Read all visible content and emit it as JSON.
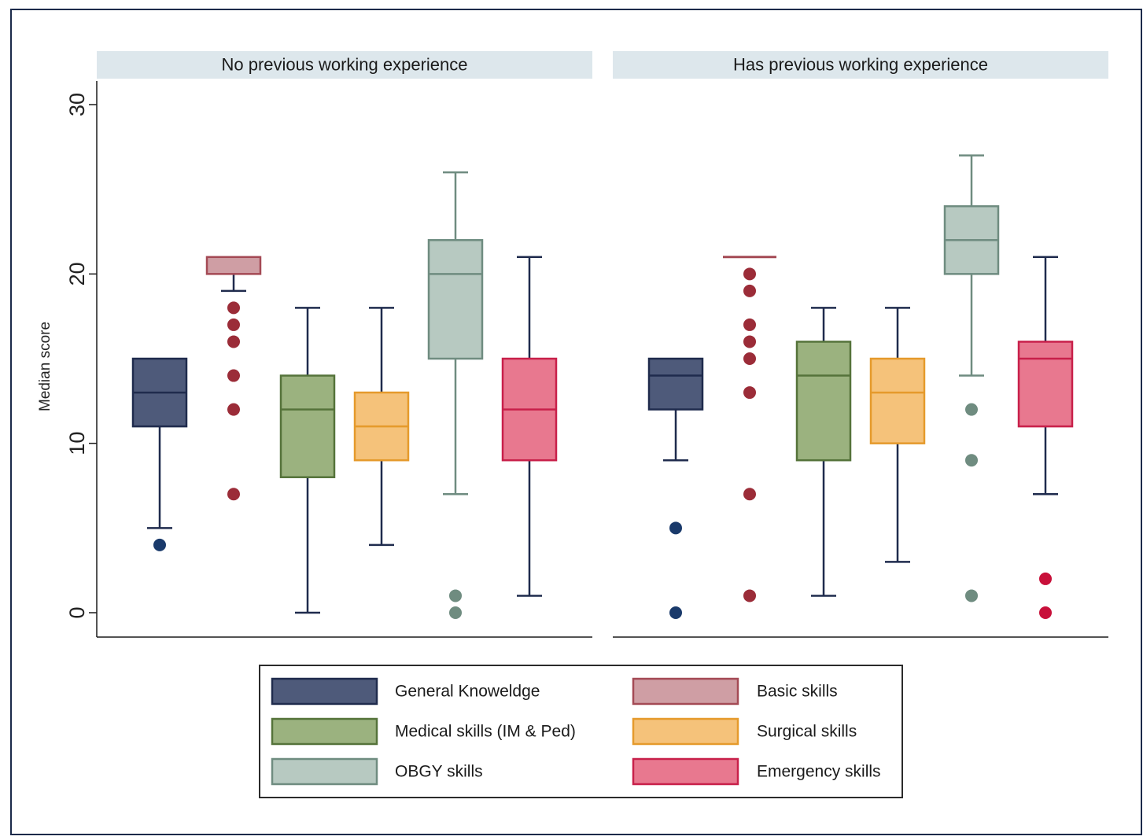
{
  "chart_data": {
    "type": "boxplot",
    "ylabel": "Median score",
    "ylim": [
      0,
      30
    ],
    "yticks": [
      0,
      10,
      20,
      30
    ],
    "panels": [
      {
        "title": "No previous working experience",
        "boxes": [
          {
            "category": "General Knowledge",
            "whisker_low": 5,
            "q1": 11,
            "median": 13,
            "q3": 15,
            "whisker_high": 15,
            "outliers": [
              4
            ]
          },
          {
            "category": "Basic skills",
            "whisker_low": 19,
            "q1": 20,
            "median": 21,
            "q3": 21,
            "whisker_high": 21,
            "outliers": [
              18,
              17,
              16,
              14,
              12,
              7
            ]
          },
          {
            "category": "Medical skills (IM & Ped)",
            "whisker_low": 0,
            "q1": 8,
            "median": 12,
            "q3": 14,
            "whisker_high": 18,
            "outliers": []
          },
          {
            "category": "Surgical skills",
            "whisker_low": 4,
            "q1": 9,
            "median": 11,
            "q3": 13,
            "whisker_high": 18,
            "outliers": []
          },
          {
            "category": "OBGY skills",
            "whisker_low": 7,
            "q1": 15,
            "median": 20,
            "q3": 22,
            "whisker_high": 26,
            "outliers": [
              1,
              0
            ]
          },
          {
            "category": "Emergency skills",
            "whisker_low": 1,
            "q1": 9,
            "median": 12,
            "q3": 15,
            "whisker_high": 21,
            "outliers": []
          }
        ]
      },
      {
        "title": "Has previous working experience",
        "boxes": [
          {
            "category": "General Knowledge",
            "whisker_low": 9,
            "q1": 12,
            "median": 14,
            "q3": 15,
            "whisker_high": 15,
            "outliers": [
              5,
              0
            ]
          },
          {
            "category": "Basic skills",
            "whisker_low": 21,
            "q1": 21,
            "median": 21,
            "q3": 21,
            "whisker_high": 21,
            "outliers": [
              20,
              19,
              17,
              16,
              15,
              13,
              7,
              1
            ]
          },
          {
            "category": "Medical skills (IM & Ped)",
            "whisker_low": 1,
            "q1": 9,
            "median": 14,
            "q3": 16,
            "whisker_high": 18,
            "outliers": []
          },
          {
            "category": "Surgical skills",
            "whisker_low": 3,
            "q1": 10,
            "median": 13,
            "q3": 15,
            "whisker_high": 18,
            "outliers": []
          },
          {
            "category": "OBGY skills",
            "whisker_low": 14,
            "q1": 20,
            "median": 22,
            "q3": 24,
            "whisker_high": 27,
            "outliers": [
              12,
              9,
              1
            ]
          },
          {
            "category": "Emergency skills",
            "whisker_low": 7,
            "q1": 11,
            "median": 15,
            "q3": 16,
            "whisker_high": 21,
            "outliers": [
              2,
              0
            ]
          }
        ]
      }
    ],
    "legend": {
      "placement": "bottom",
      "entries": [
        {
          "label": "General Knoweldge",
          "fill": "#4e5a7a",
          "stroke": "#1f2b4d"
        },
        {
          "label": "Basic skills",
          "fill": "#cf9ea4",
          "stroke": "#a44a55"
        },
        {
          "label": "Medical skills (IM & Ped)",
          "fill": "#9bb27f",
          "stroke": "#55733a"
        },
        {
          "label": "Surgical skills",
          "fill": "#f5c27a",
          "stroke": "#e59a2c"
        },
        {
          "label": "OBGY skills",
          "fill": "#b7c9c1",
          "stroke": "#6f8c80"
        },
        {
          "label": "Emergency skills",
          "fill": "#e8788f",
          "stroke": "#c8204a"
        }
      ]
    },
    "series_styles": [
      {
        "fill": "#4e5a7a",
        "stroke": "#1f2b4d",
        "whisker": "#1f2b4d",
        "outlier": "#1a3a6b"
      },
      {
        "fill": "#cf9ea4",
        "stroke": "#a44a55",
        "whisker": "#1f2b4d",
        "outlier": "#9b2c38"
      },
      {
        "fill": "#9bb27f",
        "stroke": "#55733a",
        "whisker": "#1f2b4d",
        "outlier": "#55733a"
      },
      {
        "fill": "#f5c27a",
        "stroke": "#e59a2c",
        "whisker": "#1f2b4d",
        "outlier": "#e59a2c"
      },
      {
        "fill": "#b7c9c1",
        "stroke": "#6f8c80",
        "whisker": "#6f8c80",
        "outlier": "#6f8c80"
      },
      {
        "fill": "#e8788f",
        "stroke": "#c8204a",
        "whisker": "#1f2b4d",
        "outlier": "#c8103a"
      }
    ],
    "panel_header_color": "#dde7ec",
    "grid": false
  }
}
